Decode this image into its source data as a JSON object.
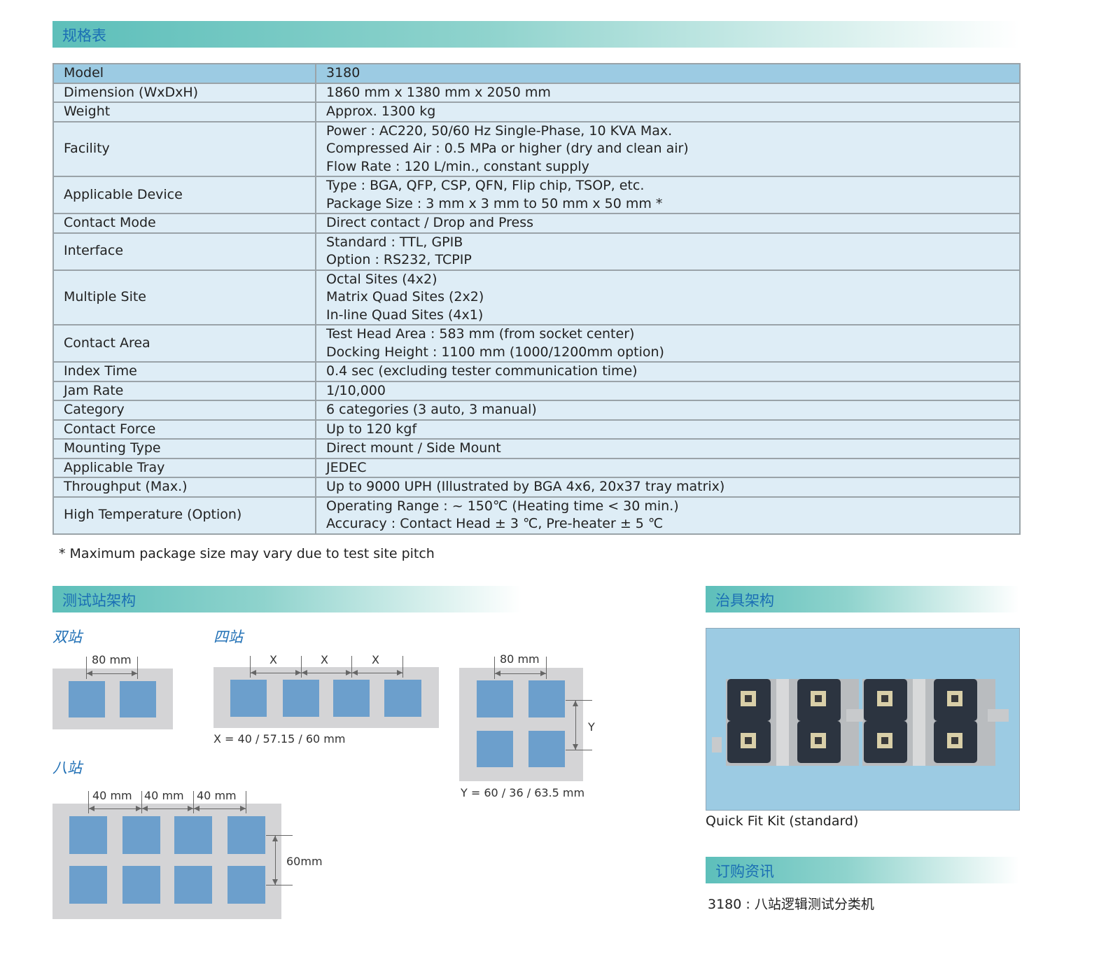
{
  "sections": {
    "spec": "规格表",
    "stations": "测试站架构",
    "fixture": "治具架构",
    "order": "订购资讯"
  },
  "spec_table": [
    {
      "key": "Model",
      "lines": [
        "3180"
      ]
    },
    {
      "key": "Dimension (WxDxH)",
      "lines": [
        "1860 mm x 1380 mm x 2050 mm"
      ]
    },
    {
      "key": "Weight",
      "lines": [
        "Approx. 1300 kg"
      ]
    },
    {
      "key": "Facility",
      "lines": [
        "Power : AC220, 50/60 Hz Single-Phase, 10 KVA Max.",
        "Compressed Air : 0.5 MPa or higher (dry and clean air)",
        "Flow Rate : 120 L/min., constant supply"
      ]
    },
    {
      "key": "Applicable Device",
      "lines": [
        "Type : BGA, QFP, CSP, QFN, Flip chip, TSOP, etc.",
        "Package Size : 3 mm x 3 mm to 50 mm x 50 mm *"
      ]
    },
    {
      "key": "Contact Mode",
      "lines": [
        "Direct contact /  Drop and Press"
      ]
    },
    {
      "key": "Interface",
      "lines": [
        "Standard : TTL, GPIB",
        "Option : RS232, TCPIP"
      ]
    },
    {
      "key": "Multiple Site",
      "lines": [
        "Octal Sites (4x2)",
        "Matrix Quad Sites (2x2)",
        "In-line Quad Sites (4x1)"
      ]
    },
    {
      "key": "Contact Area",
      "lines": [
        "Test Head Area : 583 mm (from socket center)",
        "Docking Height : 1100 mm (1000/1200mm option)"
      ]
    },
    {
      "key": "Index Time",
      "lines": [
        "0.4 sec (excluding tester communication time)"
      ]
    },
    {
      "key": "Jam Rate",
      "lines": [
        "1/10,000"
      ]
    },
    {
      "key": "Category",
      "lines": [
        "6 categories (3 auto, 3 manual)"
      ]
    },
    {
      "key": "Contact Force",
      "lines": [
        "Up to 120 kgf"
      ]
    },
    {
      "key": "Mounting Type",
      "lines": [
        "Direct mount / Side Mount"
      ]
    },
    {
      "key": "Applicable Tray",
      "lines": [
        "JEDEC"
      ]
    },
    {
      "key": "Throughput (Max.)",
      "lines": [
        "Up to 9000 UPH (Illustrated by BGA 4x6, 20x37 tray matrix)"
      ]
    },
    {
      "key": "High Temperature (Option)",
      "lines": [
        "Operating Range : ~ 150℃ (Heating time < 30 min.)",
        "Accuracy : Contact Head ± 3 ℃, Pre-heater ± 5 ℃"
      ]
    }
  ],
  "footnote": "* Maximum package size may vary due to test site pitch",
  "diagrams": {
    "dual": {
      "title": "双站",
      "pitch": "80 mm"
    },
    "quad": {
      "title": "四站",
      "pitch_labels": [
        "X",
        "X",
        "X"
      ],
      "caption": "X = 40 / 57.15 / 60 mm"
    },
    "matrix": {
      "pitch": "80 mm",
      "y_label": "Y",
      "caption": "Y = 60 / 36 / 63.5 mm"
    },
    "octal": {
      "title": "八站",
      "pitch_labels": [
        "40 mm",
        "40 mm",
        "40 mm"
      ],
      "row_pitch": "60mm"
    }
  },
  "colors": {
    "site": "#6c9fcc",
    "plate": "#d4d4d6",
    "heading": "#1f6fb5",
    "header_row": "#9ccbe3",
    "row": "#deedf6"
  },
  "fixture": {
    "caption": "Quick Fit Kit (standard)"
  },
  "order": {
    "text": "3180 : 八站逻辑测试分类机"
  }
}
